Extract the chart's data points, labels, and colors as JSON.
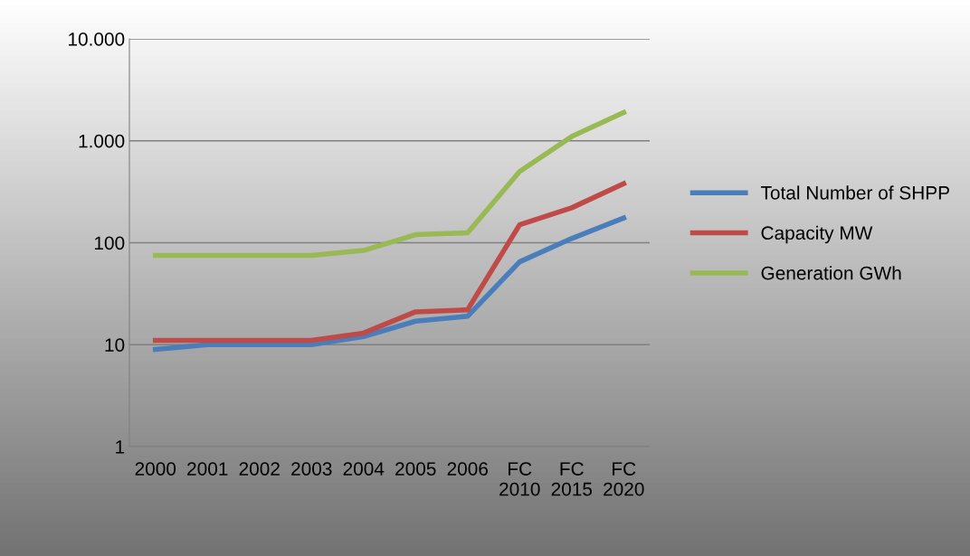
{
  "chart_data": {
    "type": "line",
    "categories": [
      "2000",
      "2001",
      "2002",
      "2003",
      "2004",
      "2005",
      "2006",
      "FC\n2010",
      "FC\n2015",
      "FC\n2020"
    ],
    "series": [
      {
        "name": "Total Number of SHPP",
        "color": "#4a7ebb",
        "values": [
          9,
          10,
          10,
          10,
          12,
          17,
          19,
          65,
          110,
          175
        ]
      },
      {
        "name": "Capacity MW",
        "color": "#be4b48",
        "values": [
          11,
          11,
          11,
          11,
          13,
          21,
          22,
          150,
          220,
          380
        ]
      },
      {
        "name": "Generation GWh",
        "color": "#98b954",
        "values": [
          75,
          75,
          75,
          75,
          84,
          120,
          125,
          500,
          1100,
          1900
        ]
      }
    ],
    "log": true,
    "ylim": [
      1,
      10000
    ],
    "yticks": [
      1,
      10,
      100,
      {
        "value": 1000,
        "label": "1.000"
      },
      {
        "value": 10000,
        "label": "10.000"
      }
    ],
    "grid": "y",
    "legend": "right",
    "marker": "none",
    "line_style": "solid"
  }
}
